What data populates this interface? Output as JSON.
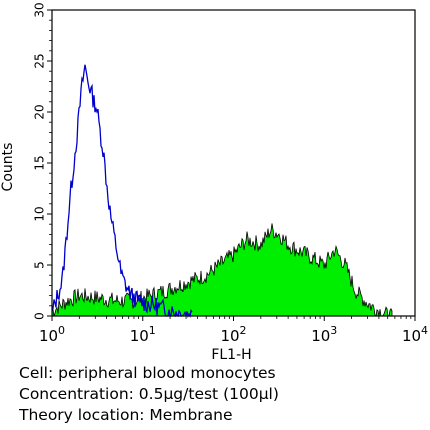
{
  "chart_data": {
    "type": "area",
    "xscale": "log",
    "xlim": [
      1,
      10000
    ],
    "ylim": [
      0,
      30
    ],
    "xlabel": "FL1-H",
    "ylabel": "Counts",
    "xticks": [
      {
        "value": 1,
        "base": "10",
        "exp": "0"
      },
      {
        "value": 10,
        "base": "10",
        "exp": "1"
      },
      {
        "value": 100,
        "base": "10",
        "exp": "2"
      },
      {
        "value": 1000,
        "base": "10",
        "exp": "3"
      },
      {
        "value": 10000,
        "base": "10",
        "exp": "4"
      }
    ],
    "yticks": [
      0,
      5,
      10,
      15,
      20,
      25,
      30
    ],
    "grid": false,
    "colors": {
      "control": "#0000cc",
      "stained": "#00ee00",
      "stained_edge": "#000000",
      "frame": "#000000"
    },
    "series": [
      {
        "role": "control",
        "style": "outline",
        "x": [
          1.0,
          1.3,
          1.6,
          1.9,
          2.1,
          2.3,
          2.5,
          2.7,
          2.9,
          3.1,
          3.4,
          3.7,
          4.0,
          4.4,
          4.8,
          5.3,
          5.8,
          6.5,
          7.5,
          9.0,
          11,
          14,
          18,
          25,
          35
        ],
        "y": [
          0.3,
          3.5,
          12,
          18,
          22,
          24.5,
          23,
          22,
          21,
          20.5,
          18,
          16,
          13,
          10,
          8,
          6,
          4,
          3,
          2,
          1.5,
          1.2,
          1.0,
          0.6,
          0.3,
          0.2
        ]
      },
      {
        "role": "stained",
        "style": "filled",
        "x": [
          1.0,
          1.5,
          2,
          3,
          5,
          8,
          12,
          18,
          25,
          35,
          50,
          70,
          100,
          140,
          200,
          260,
          320,
          400,
          500,
          650,
          800,
          1000,
          1300,
          1700,
          2200,
          2800,
          3500,
          4500,
          5600
        ],
        "y": [
          0.5,
          1.5,
          2,
          1.8,
          1.5,
          1.5,
          2,
          2.5,
          3,
          3.5,
          4,
          5,
          6,
          7.5,
          7,
          8.5,
          8,
          7,
          6.5,
          6,
          5.5,
          5,
          6.5,
          5,
          2.5,
          1.5,
          0.8,
          0.3,
          0.1
        ]
      }
    ]
  },
  "info": {
    "line1": "Cell: peripheral blood monocytes",
    "line2": "Concentration: 0.5μg/test (100μl)",
    "line3": "Theory location: Membrane"
  }
}
